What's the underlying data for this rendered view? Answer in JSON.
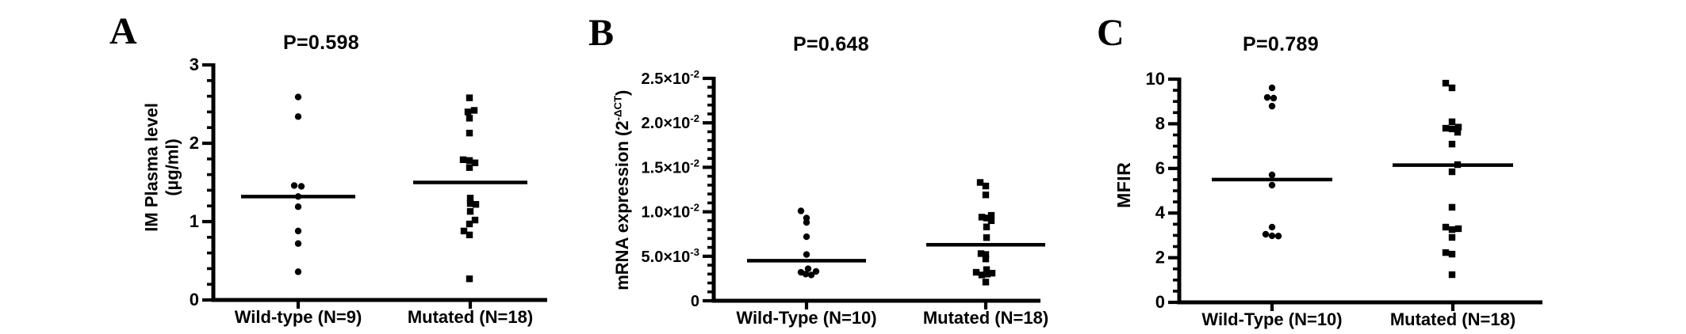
{
  "figure": {
    "background": "#ffffff",
    "ink_color": "#000000",
    "description_titles": [
      "P=0.598",
      "P=0.648",
      "P=0.789"
    ]
  },
  "chart_data": [
    {
      "type": "scatter",
      "panel_letter": "A",
      "title": "P=0.598",
      "ylabel": "IM Plasma level (µg/ml)",
      "ylabel_lines": [
        "IM Plasma level",
        "(µg/ml)"
      ],
      "ylim": [
        0,
        3
      ],
      "yticks": [
        {
          "v": 0,
          "label": "0"
        },
        {
          "v": 1,
          "label": "1"
        },
        {
          "v": 2,
          "label": "2"
        },
        {
          "v": 3,
          "label": "3"
        }
      ],
      "minor_tick_step": 0.2,
      "grid": "off",
      "legend": "none",
      "groups": [
        {
          "label": "Wild-type (N=9)",
          "marker": "circle",
          "median": 1.32,
          "points": [
            {
              "dx": 0,
              "y": 2.59
            },
            {
              "dx": 0,
              "y": 2.34
            },
            {
              "dx": -5,
              "y": 1.46
            },
            {
              "dx": 4,
              "y": 1.45
            },
            {
              "dx": 0,
              "y": 1.32
            },
            {
              "dx": 0,
              "y": 1.19
            },
            {
              "dx": 0,
              "y": 0.88
            },
            {
              "dx": 0,
              "y": 0.72
            },
            {
              "dx": 0,
              "y": 0.36
            }
          ]
        },
        {
          "label": "Mutated (N=18)",
          "marker": "square",
          "median": 1.5,
          "points": [
            {
              "dx": -1,
              "y": 2.58
            },
            {
              "dx": 5,
              "y": 2.42
            },
            {
              "dx": -3,
              "y": 2.4
            },
            {
              "dx": -1,
              "y": 2.32
            },
            {
              "dx": -1,
              "y": 2.13
            },
            {
              "dx": -9,
              "y": 1.79
            },
            {
              "dx": -1,
              "y": 1.78
            },
            {
              "dx": 6,
              "y": 1.75
            },
            {
              "dx": -1,
              "y": 1.69
            },
            {
              "dx": 0,
              "y": 1.3
            },
            {
              "dx": 0,
              "y": 1.23
            },
            {
              "dx": 7,
              "y": 1.22
            },
            {
              "dx": 0,
              "y": 1.13
            },
            {
              "dx": 6,
              "y": 1.02
            },
            {
              "dx": -1,
              "y": 0.97
            },
            {
              "dx": -8,
              "y": 0.88
            },
            {
              "dx": -1,
              "y": 0.83
            },
            {
              "dx": -1,
              "y": 0.27
            }
          ]
        }
      ]
    },
    {
      "type": "scatter",
      "panel_letter": "B",
      "title": "P=0.648",
      "ylabel": "mRNA expression (2^-ΔCT)",
      "ylabel_parts": {
        "pre": "mRNA expression (2",
        "sup": "-ΔCT",
        "post": ")"
      },
      "ylim": [
        0,
        0.025
      ],
      "yticks": [
        {
          "v": 0,
          "label": "0"
        },
        {
          "v": 0.005,
          "label": "5.0×10^{-3}"
        },
        {
          "v": 0.01,
          "label": "1.0×10^{-2}"
        },
        {
          "v": 0.015,
          "label": "1.5×10^{-2}"
        },
        {
          "v": 0.02,
          "label": "2.0×10^{-2}"
        },
        {
          "v": 0.025,
          "label": "2.5×10^{-2}"
        }
      ],
      "minor_tick_step": 0.001,
      "grid": "off",
      "legend": "none",
      "groups": [
        {
          "label": "Wild-Type (N=10)",
          "marker": "circle",
          "median": 0.0045,
          "points": [
            {
              "dx": -7,
              "y": 0.0101
            },
            {
              "dx": 0,
              "y": 0.0093
            },
            {
              "dx": 0,
              "y": 0.0088
            },
            {
              "dx": 0,
              "y": 0.0072
            },
            {
              "dx": 0,
              "y": 0.0052
            },
            {
              "dx": 2,
              "y": 0.0036
            },
            {
              "dx": 12,
              "y": 0.0033
            },
            {
              "dx": -7,
              "y": 0.0032
            },
            {
              "dx": -1,
              "y": 0.003
            },
            {
              "dx": 6,
              "y": 0.0029
            }
          ]
        },
        {
          "label": "Mutated (N=18)",
          "marker": "square",
          "median": 0.0063,
          "points": [
            {
              "dx": -7,
              "y": 0.0133
            },
            {
              "dx": 0,
              "y": 0.0129
            },
            {
              "dx": 0,
              "y": 0.0119
            },
            {
              "dx": 7,
              "y": 0.0096
            },
            {
              "dx": -5,
              "y": 0.0094
            },
            {
              "dx": 1,
              "y": 0.0093
            },
            {
              "dx": 7,
              "y": 0.009
            },
            {
              "dx": 1,
              "y": 0.0083
            },
            {
              "dx": 1,
              "y": 0.0071
            },
            {
              "dx": -6,
              "y": 0.0053
            },
            {
              "dx": 0,
              "y": 0.0052
            },
            {
              "dx": 0,
              "y": 0.0047
            },
            {
              "dx": 1,
              "y": 0.0035
            },
            {
              "dx": -12,
              "y": 0.0032
            },
            {
              "dx": 8,
              "y": 0.0031
            },
            {
              "dx": 2,
              "y": 0.003
            },
            {
              "dx": -5,
              "y": 0.0029
            },
            {
              "dx": 0,
              "y": 0.0021
            }
          ]
        }
      ]
    },
    {
      "type": "scatter",
      "panel_letter": "C",
      "title": "P=0.789",
      "ylabel": "MFIR",
      "ylim": [
        0,
        10
      ],
      "yticks": [
        {
          "v": 0,
          "label": "0"
        },
        {
          "v": 2,
          "label": "2"
        },
        {
          "v": 4,
          "label": "4"
        },
        {
          "v": 6,
          "label": "6"
        },
        {
          "v": 8,
          "label": "8"
        },
        {
          "v": 10,
          "label": "10"
        }
      ],
      "minor_tick_step": 0.5,
      "grid": "off",
      "legend": "none",
      "groups": [
        {
          "label": "Wild-Type (N=10)",
          "marker": "circle",
          "median": 5.5,
          "points": [
            {
              "dx": 0,
              "y": 9.61
            },
            {
              "dx": -6,
              "y": 9.18
            },
            {
              "dx": 2,
              "y": 9.15
            },
            {
              "dx": 0,
              "y": 8.79
            },
            {
              "dx": 0,
              "y": 5.71
            },
            {
              "dx": 0,
              "y": 5.25
            },
            {
              "dx": 0,
              "y": 3.37
            },
            {
              "dx": -8,
              "y": 3.05
            },
            {
              "dx": 0,
              "y": 2.98
            },
            {
              "dx": 8,
              "y": 2.97
            }
          ]
        },
        {
          "label": "Mutated (N=18)",
          "marker": "square",
          "median": 6.15,
          "points": [
            {
              "dx": -9,
              "y": 9.82
            },
            {
              "dx": -1,
              "y": 9.61
            },
            {
              "dx": -1,
              "y": 8.09
            },
            {
              "dx": 7,
              "y": 7.85
            },
            {
              "dx": -9,
              "y": 7.8
            },
            {
              "dx": -1,
              "y": 7.77
            },
            {
              "dx": 6,
              "y": 7.62
            },
            {
              "dx": -1,
              "y": 7.09
            },
            {
              "dx": 6,
              "y": 6.17
            },
            {
              "dx": -1,
              "y": 5.85
            },
            {
              "dx": -1,
              "y": 4.26
            },
            {
              "dx": -9,
              "y": 3.37
            },
            {
              "dx": 7,
              "y": 3.3
            },
            {
              "dx": -1,
              "y": 3.26
            },
            {
              "dx": -1,
              "y": 2.91
            },
            {
              "dx": -9,
              "y": 2.23
            },
            {
              "dx": -1,
              "y": 2.16
            },
            {
              "dx": -1,
              "y": 1.24
            }
          ]
        }
      ]
    }
  ]
}
